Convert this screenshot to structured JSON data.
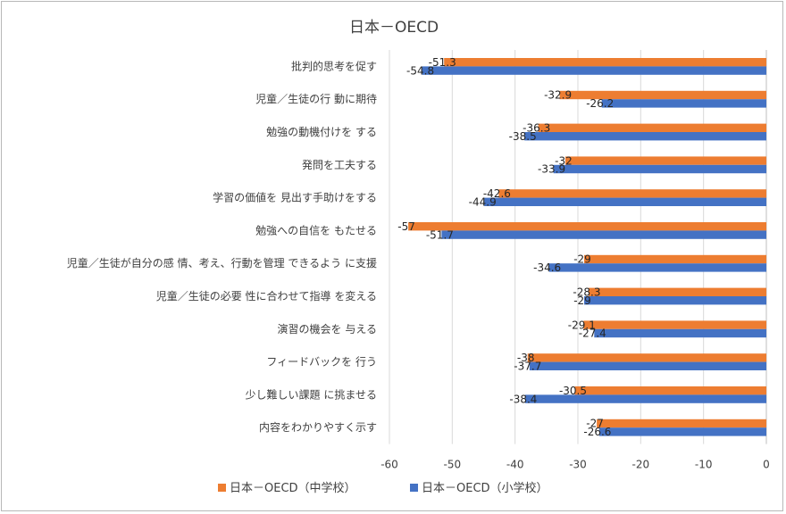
{
  "chart_data": {
    "type": "bar",
    "orientation": "horizontal",
    "title": "日本－OECD",
    "categories": [
      "批判的思考を促す",
      "児童／生徒の行 動に期待",
      "勉強の動機付けを する",
      "発問を工夫する",
      "学習の価値を 見出す手助けをする",
      "勉強への自信を もたせる",
      "児童／生徒が自分の感 情、考え、行動を管理 できるよう に支援",
      "児童／生徒の必要 性に合わせて指導 を変える",
      "演習の機会を 与える",
      "フィードバックを 行う",
      "少し難しい課題 に挑ませる",
      "内容をわかりやすく示す"
    ],
    "series": [
      {
        "name": "日本－OECD（中学校）",
        "color": "#ed7d31",
        "values": [
          -51.3,
          -32.9,
          -36.3,
          -32,
          -42.6,
          -57,
          -29,
          -28.3,
          -29.1,
          -38,
          -30.5,
          -27
        ],
        "labels": [
          "-51.3",
          "-32.9",
          "-36.3",
          "-32",
          "-42.6",
          "-57",
          "-29",
          "-28.3",
          "-29.1",
          "-38",
          "-30.5",
          "-27"
        ]
      },
      {
        "name": "日本－OECD（小学校）",
        "color": "#4472c4",
        "values": [
          -54.8,
          -26.2,
          -38.5,
          -33.9,
          -44.9,
          -51.7,
          -34.6,
          -29,
          -27.4,
          -37.7,
          -38.4,
          -26.6
        ],
        "labels": [
          "-54.8",
          "-26.2",
          "-38.5",
          "-33.9",
          "-44.9",
          "-51.7",
          "-34.6",
          "-29",
          "-27.4",
          "-37.7",
          "-38.4",
          "-26.6"
        ]
      }
    ],
    "xlim": [
      -60,
      0
    ],
    "xticks": [
      -60,
      -50,
      -40,
      -30,
      -20,
      -10,
      0
    ],
    "xtick_labels": [
      "-60",
      "-50",
      "-40",
      "-30",
      "-20",
      "-10",
      "0"
    ],
    "grid": true,
    "legend_position": "bottom"
  }
}
